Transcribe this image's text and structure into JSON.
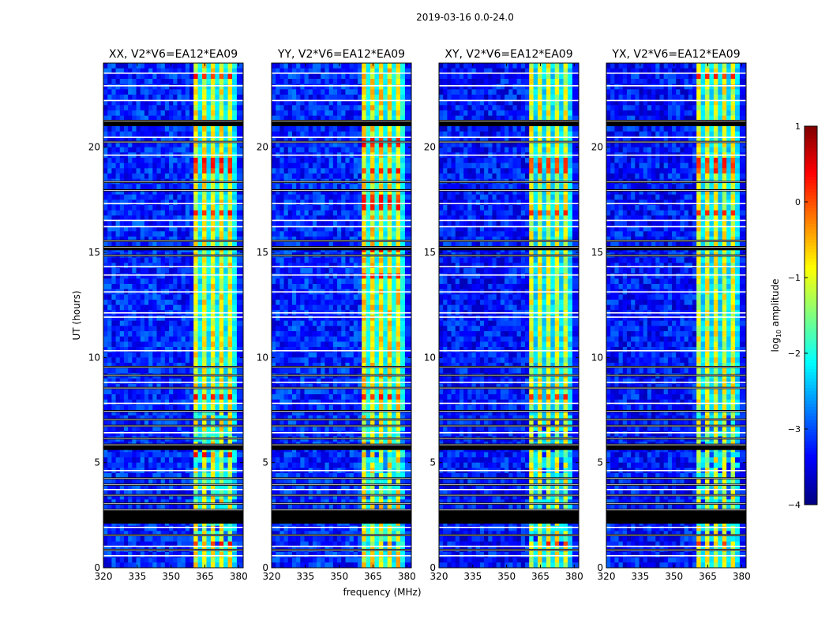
{
  "figure": {
    "suptitle": "2019-03-16 0.0-24.0",
    "colorbar": {
      "label_main": "log",
      "label_sub": "10",
      "label_tail": " amplitude",
      "range": [
        -4,
        1
      ],
      "ticks": [
        1,
        0,
        -1,
        -2,
        -3,
        -4
      ],
      "tick_labels": [
        "1",
        "0",
        "−1",
        "−2",
        "−3",
        "−4"
      ],
      "colormap": [
        "#00007f",
        "#0000ff",
        "#007fff",
        "#00ffff",
        "#7fff7f",
        "#ffff00",
        "#ff7f00",
        "#ff0000",
        "#7f0000"
      ]
    },
    "flag_color": "#000000",
    "empty_color": "#ffffff"
  },
  "chart_data": [
    {
      "type": "heatmap",
      "title": "XX, V2*V6=EA12*EA09",
      "xlabel": "",
      "ylabel": "UT (hours)",
      "xlim": [
        320,
        382
      ],
      "ylim": [
        0,
        24
      ],
      "xticks": [
        320,
        335,
        350,
        365,
        380
      ],
      "yticks": [
        0,
        5,
        10,
        15,
        20
      ],
      "bright_band_mhz": [
        360,
        379
      ],
      "bright_band_level": -0.9,
      "background_level": -3.2,
      "strong_rows_ut": [
        [
          23.2,
          23.4
        ],
        [
          19.1,
          19.4
        ],
        [
          18.7,
          18.9
        ],
        [
          16.8,
          17.0
        ],
        [
          8.0,
          8.3
        ],
        [
          5.3,
          5.5
        ],
        [
          1.1,
          1.3
        ]
      ],
      "strong_level": 0.2
    },
    {
      "type": "heatmap",
      "title": "YY, V2*V6=EA12*EA09",
      "xlabel": "frequency (MHz)",
      "ylabel": "",
      "xlim": [
        320,
        382
      ],
      "ylim": [
        0,
        24
      ],
      "xticks": [
        320,
        335,
        350,
        365,
        380
      ],
      "yticks": [
        0,
        5,
        10,
        15,
        20
      ],
      "bright_band_mhz": [
        360,
        379
      ],
      "bright_band_level": -0.8,
      "background_level": -3.2,
      "strong_rows_ut": [
        [
          19.9,
          20.4
        ],
        [
          18.7,
          19.1
        ],
        [
          17.0,
          17.8
        ],
        [
          13.8,
          14.0
        ],
        [
          15.0,
          15.2
        ],
        [
          8.0,
          8.3
        ]
      ],
      "strong_level": 0.2
    },
    {
      "type": "heatmap",
      "title": "XY, V2*V6=EA12*EA09",
      "xlabel": "",
      "ylabel": "",
      "xlim": [
        320,
        382
      ],
      "ylim": [
        0,
        24
      ],
      "xticks": [
        320,
        335,
        350,
        365,
        380
      ],
      "yticks": [
        0,
        5,
        10,
        15,
        20
      ],
      "bright_band_mhz": [
        360,
        379
      ],
      "bright_band_level": -1.0,
      "background_level": -3.3,
      "strong_rows_ut": [
        [
          19.1,
          19.4
        ],
        [
          18.7,
          18.9
        ],
        [
          16.8,
          17.0
        ],
        [
          8.0,
          8.3
        ],
        [
          1.1,
          1.3
        ]
      ],
      "strong_level": 0.0
    },
    {
      "type": "heatmap",
      "title": "YX, V2*V6=EA12*EA09",
      "xlabel": "",
      "ylabel": "",
      "xlim": [
        320,
        382
      ],
      "ylim": [
        0,
        24
      ],
      "xticks": [
        320,
        335,
        350,
        365,
        380
      ],
      "yticks": [
        0,
        5,
        10,
        15,
        20
      ],
      "bright_band_mhz": [
        360,
        379
      ],
      "bright_band_level": -1.0,
      "background_level": -3.3,
      "strong_rows_ut": [
        [
          23.2,
          23.4
        ],
        [
          19.1,
          19.4
        ],
        [
          18.7,
          18.9
        ],
        [
          16.8,
          17.0
        ],
        [
          1.1,
          1.3
        ]
      ],
      "strong_level": 0.1
    }
  ],
  "flagged_ut_ranges": [
    [
      21.0,
      21.3
    ],
    [
      20.2,
      20.3
    ],
    [
      18.3,
      18.4
    ],
    [
      17.9,
      18.0
    ],
    [
      15.5,
      15.6
    ],
    [
      15.1,
      15.3
    ],
    [
      14.8,
      14.9
    ],
    [
      9.5,
      9.6
    ],
    [
      9.1,
      9.2
    ],
    [
      8.5,
      8.6
    ],
    [
      7.4,
      7.5
    ],
    [
      7.0,
      7.1
    ],
    [
      6.7,
      6.8
    ],
    [
      6.1,
      6.2
    ],
    [
      5.6,
      5.9
    ],
    [
      4.2,
      4.3
    ],
    [
      3.9,
      4.0
    ],
    [
      3.4,
      3.5
    ],
    [
      3.0,
      3.1
    ],
    [
      2.1,
      2.8
    ],
    [
      1.5,
      1.6
    ],
    [
      0.8,
      0.9
    ]
  ],
  "blank_ut_ranges": [
    [
      23.5,
      23.55
    ],
    [
      22.9,
      22.95
    ],
    [
      22.2,
      22.25
    ],
    [
      20.45,
      20.5
    ],
    [
      19.6,
      19.65
    ],
    [
      17.3,
      17.35
    ],
    [
      16.5,
      16.55
    ],
    [
      16.2,
      16.25
    ],
    [
      14.3,
      14.35
    ],
    [
      13.9,
      13.95
    ],
    [
      13.1,
      13.15
    ],
    [
      12.1,
      12.15
    ],
    [
      11.9,
      11.95
    ],
    [
      10.3,
      10.35
    ],
    [
      8.8,
      8.85
    ],
    [
      7.8,
      7.85
    ],
    [
      6.4,
      6.45
    ],
    [
      4.6,
      4.65
    ],
    [
      3.7,
      3.75
    ],
    [
      1.9,
      1.95
    ],
    [
      1.0,
      1.05
    ],
    [
      0.55,
      0.6
    ]
  ]
}
